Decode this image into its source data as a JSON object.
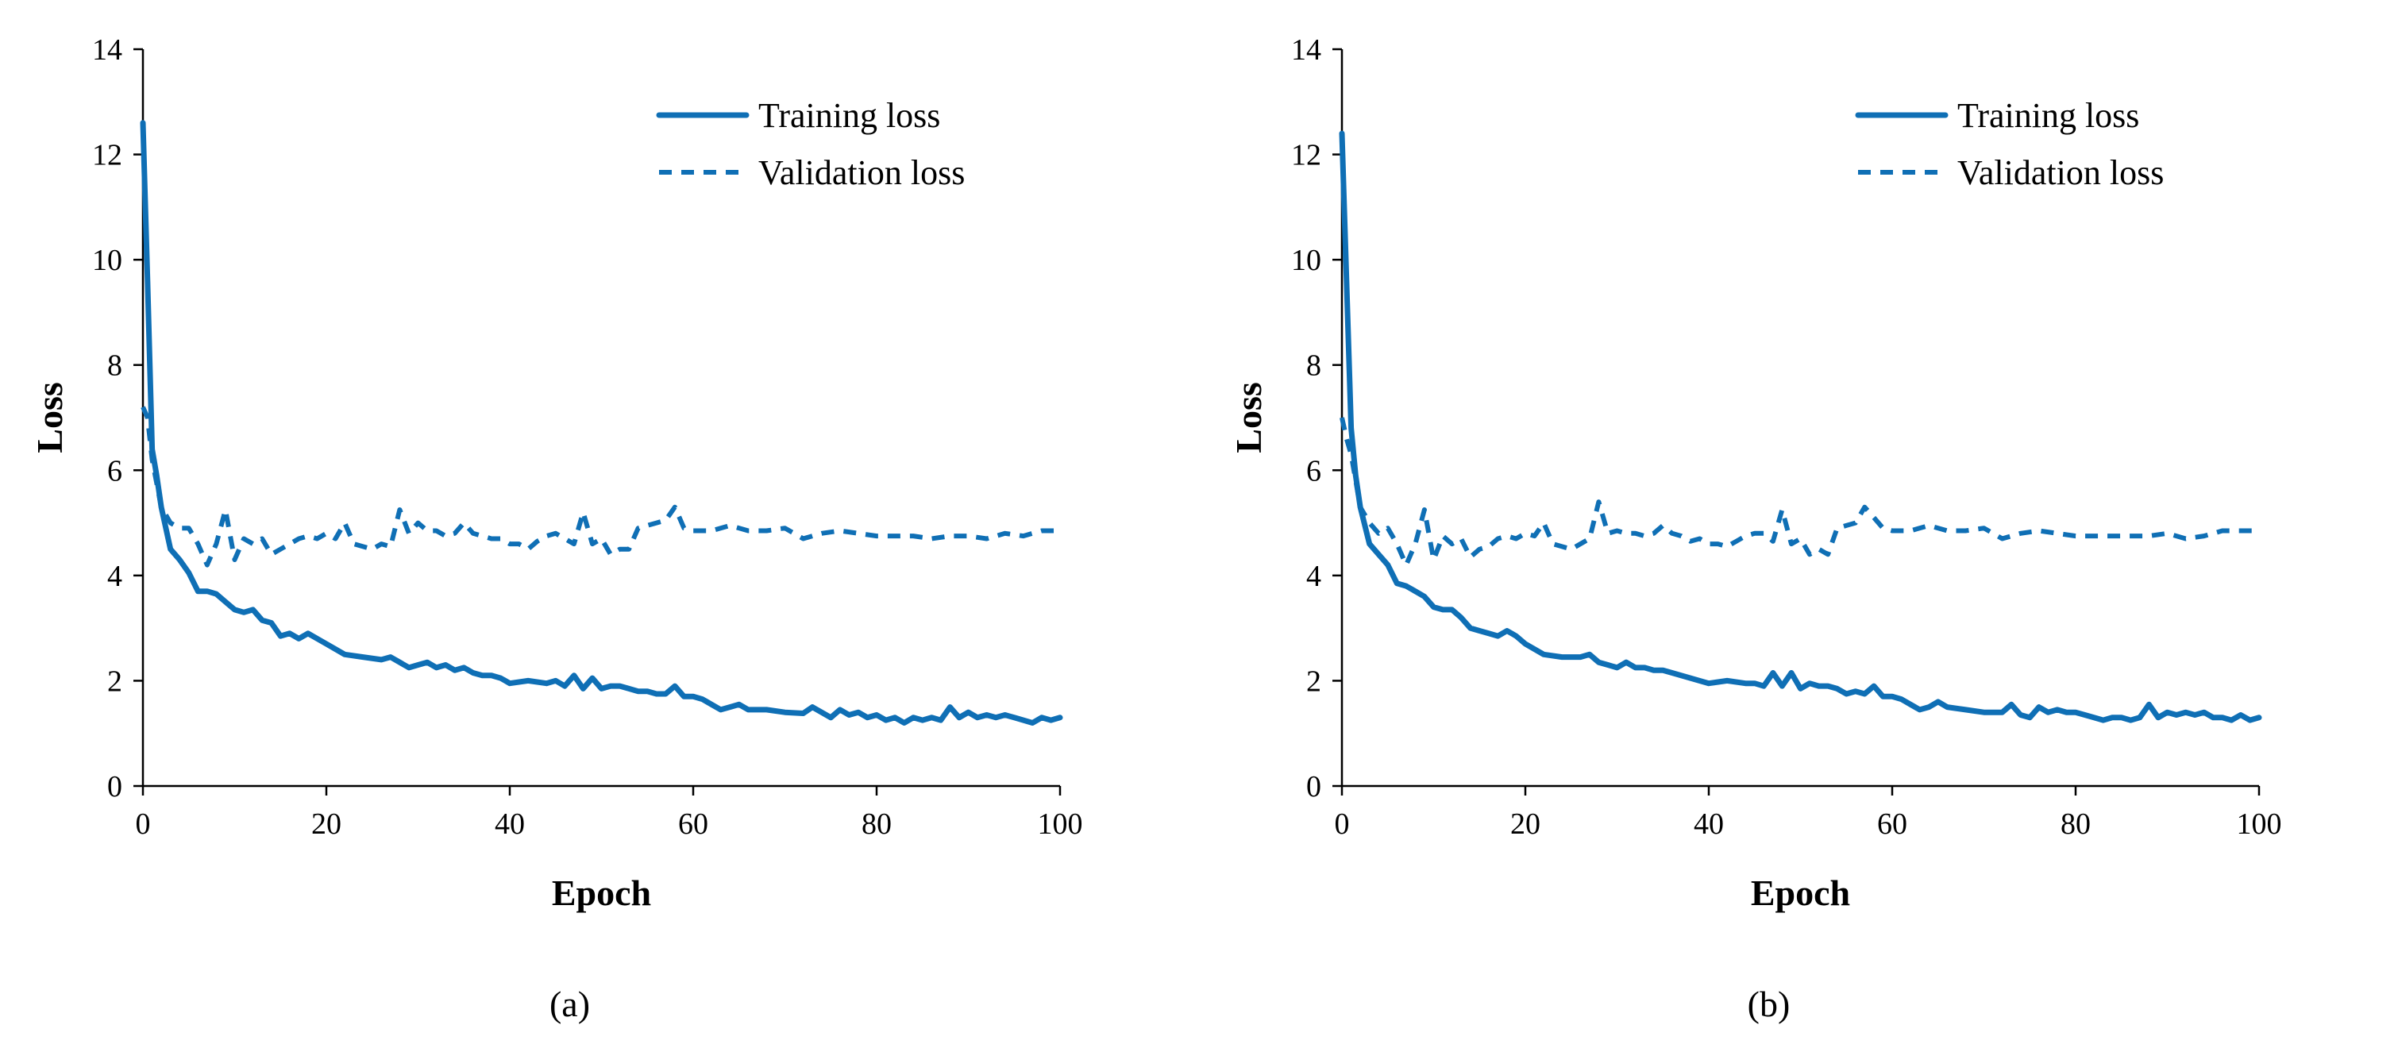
{
  "colors": {
    "series": "#0F6FB5",
    "axis": "#000000"
  },
  "chart_data": [
    {
      "type": "line",
      "caption": "(a)",
      "xlabel": "Epoch",
      "ylabel": "Loss",
      "xlim": [
        0,
        100
      ],
      "ylim": [
        0,
        14
      ],
      "xticks": [
        0,
        20,
        40,
        60,
        80,
        100
      ],
      "yticks": [
        0,
        2,
        4,
        6,
        8,
        10,
        12,
        14
      ],
      "legend_position": "top-right",
      "series": [
        {
          "name": "Training loss",
          "style": "solid",
          "x": [
            0,
            0.5,
            1,
            1.5,
            2,
            3,
            4,
            5,
            6,
            7,
            8,
            9,
            10,
            11,
            12,
            13,
            14,
            15,
            16,
            17,
            18,
            19,
            20,
            22,
            24,
            26,
            27,
            28,
            29,
            30,
            31,
            32,
            33,
            34,
            35,
            36,
            37,
            38,
            39,
            40,
            42,
            44,
            45,
            46,
            47,
            48,
            49,
            50,
            51,
            52,
            53,
            54,
            55,
            56,
            57,
            58,
            59,
            60,
            61,
            62,
            63,
            64,
            65,
            66,
            68,
            70,
            72,
            73,
            74,
            75,
            76,
            77,
            78,
            79,
            80,
            81,
            82,
            83,
            84,
            85,
            86,
            87,
            88,
            89,
            90,
            91,
            92,
            93,
            94,
            95,
            96,
            97,
            98,
            99,
            100
          ],
          "y": [
            12.6,
            9.6,
            6.4,
            5.9,
            5.3,
            4.5,
            4.3,
            4.05,
            3.7,
            3.7,
            3.65,
            3.5,
            3.35,
            3.3,
            3.35,
            3.15,
            3.1,
            2.85,
            2.9,
            2.8,
            2.9,
            2.8,
            2.7,
            2.5,
            2.45,
            2.4,
            2.45,
            2.35,
            2.25,
            2.3,
            2.35,
            2.25,
            2.3,
            2.2,
            2.25,
            2.15,
            2.1,
            2.1,
            2.05,
            1.95,
            2.0,
            1.95,
            2.0,
            1.9,
            2.1,
            1.85,
            2.05,
            1.85,
            1.9,
            1.9,
            1.85,
            1.8,
            1.8,
            1.75,
            1.75,
            1.9,
            1.7,
            1.7,
            1.65,
            1.55,
            1.45,
            1.5,
            1.55,
            1.45,
            1.45,
            1.4,
            1.38,
            1.5,
            1.4,
            1.3,
            1.45,
            1.35,
            1.4,
            1.3,
            1.35,
            1.25,
            1.3,
            1.2,
            1.3,
            1.25,
            1.3,
            1.25,
            1.5,
            1.3,
            1.4,
            1.3,
            1.35,
            1.3,
            1.35,
            1.3,
            1.25,
            1.2,
            1.3,
            1.25,
            1.3
          ]
        },
        {
          "name": "Validation loss",
          "style": "dashed",
          "x": [
            0,
            0.5,
            1,
            2,
            3,
            4,
            5,
            6,
            7,
            8,
            9,
            10,
            11,
            12,
            13,
            14,
            15,
            16,
            17,
            18,
            19,
            20,
            21,
            22,
            23,
            24,
            25,
            26,
            27,
            28,
            29,
            30,
            31,
            32,
            33,
            34,
            35,
            36,
            37,
            38,
            39,
            40,
            41,
            42,
            43,
            44,
            45,
            46,
            47,
            48,
            49,
            50,
            51,
            52,
            53,
            54,
            55,
            56,
            57,
            58,
            59,
            60,
            62,
            64,
            66,
            68,
            70,
            72,
            74,
            76,
            78,
            80,
            82,
            84,
            86,
            88,
            90,
            92,
            94,
            96,
            98,
            100
          ],
          "y": [
            7.2,
            7.0,
            6.2,
            5.3,
            5.0,
            4.9,
            4.9,
            4.6,
            4.2,
            4.6,
            5.25,
            4.3,
            4.7,
            4.6,
            4.7,
            4.4,
            4.5,
            4.6,
            4.7,
            4.75,
            4.7,
            4.8,
            4.7,
            5.0,
            4.6,
            4.55,
            4.5,
            4.6,
            4.55,
            5.25,
            4.8,
            5.0,
            4.85,
            4.85,
            4.75,
            4.8,
            5.0,
            4.8,
            4.75,
            4.7,
            4.7,
            4.6,
            4.6,
            4.5,
            4.65,
            4.75,
            4.8,
            4.7,
            4.6,
            5.2,
            4.6,
            4.7,
            4.4,
            4.5,
            4.5,
            4.9,
            4.95,
            5.0,
            5.05,
            5.3,
            4.9,
            4.85,
            4.85,
            4.95,
            4.85,
            4.85,
            4.9,
            4.7,
            4.8,
            4.85,
            4.8,
            4.75,
            4.75,
            4.75,
            4.7,
            4.75,
            4.75,
            4.7,
            4.8,
            4.75,
            4.85,
            4.85
          ]
        }
      ]
    },
    {
      "type": "line",
      "caption": "(b)",
      "xlabel": "Epoch",
      "ylabel": "Loss",
      "xlim": [
        0,
        100
      ],
      "ylim": [
        0,
        14
      ],
      "xticks": [
        0,
        20,
        40,
        60,
        80,
        100
      ],
      "yticks": [
        0,
        2,
        4,
        6,
        8,
        10,
        12,
        14
      ],
      "legend_position": "top-right",
      "series": [
        {
          "name": "Training loss",
          "style": "solid",
          "x": [
            0,
            0.5,
            1,
            1.5,
            2,
            3,
            4,
            5,
            6,
            7,
            8,
            9,
            10,
            11,
            12,
            13,
            14,
            15,
            16,
            17,
            18,
            19,
            20,
            22,
            24,
            26,
            27,
            28,
            29,
            30,
            31,
            32,
            33,
            34,
            35,
            36,
            38,
            40,
            42,
            44,
            45,
            46,
            47,
            48,
            49,
            50,
            51,
            52,
            53,
            54,
            55,
            56,
            57,
            58,
            59,
            60,
            61,
            62,
            63,
            64,
            65,
            66,
            68,
            70,
            72,
            73,
            74,
            75,
            76,
            77,
            78,
            79,
            80,
            81,
            82,
            83,
            84,
            85,
            86,
            87,
            88,
            89,
            90,
            91,
            92,
            93,
            94,
            95,
            96,
            97,
            98,
            99,
            100
          ],
          "y": [
            12.4,
            9.6,
            6.8,
            5.9,
            5.3,
            4.6,
            4.4,
            4.2,
            3.85,
            3.8,
            3.7,
            3.6,
            3.4,
            3.35,
            3.35,
            3.2,
            3.0,
            2.95,
            2.9,
            2.85,
            2.95,
            2.85,
            2.7,
            2.5,
            2.45,
            2.45,
            2.5,
            2.35,
            2.3,
            2.25,
            2.35,
            2.25,
            2.25,
            2.2,
            2.2,
            2.15,
            2.05,
            1.95,
            2.0,
            1.95,
            1.95,
            1.9,
            2.15,
            1.9,
            2.15,
            1.85,
            1.95,
            1.9,
            1.9,
            1.85,
            1.75,
            1.8,
            1.75,
            1.9,
            1.7,
            1.7,
            1.65,
            1.55,
            1.45,
            1.5,
            1.6,
            1.5,
            1.45,
            1.4,
            1.4,
            1.55,
            1.35,
            1.3,
            1.5,
            1.4,
            1.45,
            1.4,
            1.4,
            1.35,
            1.3,
            1.25,
            1.3,
            1.3,
            1.25,
            1.3,
            1.55,
            1.3,
            1.4,
            1.35,
            1.4,
            1.35,
            1.4,
            1.3,
            1.3,
            1.25,
            1.35,
            1.25,
            1.3
          ]
        },
        {
          "name": "Validation loss",
          "style": "dashed",
          "x": [
            0,
            0.5,
            1,
            2,
            3,
            4,
            5,
            6,
            7,
            8,
            9,
            10,
            11,
            12,
            13,
            14,
            15,
            16,
            17,
            18,
            19,
            20,
            21,
            22,
            23,
            24,
            25,
            26,
            27,
            28,
            29,
            30,
            31,
            32,
            33,
            34,
            35,
            36,
            37,
            38,
            39,
            40,
            41,
            42,
            43,
            44,
            45,
            46,
            47,
            48,
            49,
            50,
            51,
            52,
            53,
            54,
            55,
            56,
            57,
            58,
            59,
            60,
            62,
            64,
            66,
            68,
            70,
            72,
            74,
            76,
            78,
            80,
            82,
            84,
            86,
            88,
            90,
            92,
            94,
            96,
            98,
            100
          ],
          "y": [
            7.0,
            6.6,
            6.3,
            5.3,
            5.0,
            4.8,
            4.9,
            4.6,
            4.2,
            4.6,
            5.25,
            4.3,
            4.75,
            4.6,
            4.7,
            4.35,
            4.5,
            4.55,
            4.7,
            4.75,
            4.7,
            4.8,
            4.75,
            5.0,
            4.6,
            4.55,
            4.5,
            4.6,
            4.7,
            5.4,
            4.8,
            4.85,
            4.8,
            4.8,
            4.75,
            4.8,
            4.95,
            4.8,
            4.75,
            4.65,
            4.7,
            4.6,
            4.6,
            4.55,
            4.65,
            4.75,
            4.8,
            4.8,
            4.65,
            5.25,
            4.6,
            4.7,
            4.4,
            4.5,
            4.4,
            4.9,
            4.95,
            5.0,
            5.3,
            5.1,
            4.9,
            4.85,
            4.85,
            4.95,
            4.85,
            4.85,
            4.9,
            4.7,
            4.8,
            4.85,
            4.8,
            4.75,
            4.75,
            4.75,
            4.75,
            4.75,
            4.8,
            4.7,
            4.75,
            4.85,
            4.85,
            4.85
          ]
        }
      ]
    }
  ]
}
